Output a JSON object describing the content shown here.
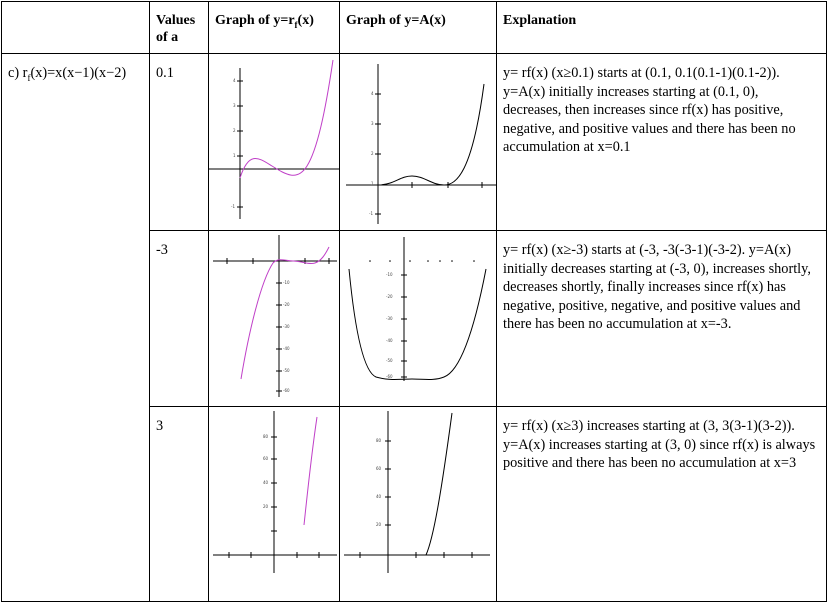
{
  "headers": {
    "blank": "",
    "values_of_a": "Values of a",
    "graph_r": "Graph of y=r",
    "graph_r_sub": "f",
    "graph_r_tail": "(x)",
    "graph_A": "Graph of y=A(x)",
    "explanation": "Explanation"
  },
  "function": {
    "prefix": "c) r",
    "sub": "f",
    "rest": "(x)=x(x−1)(x−2)"
  },
  "rows": [
    {
      "a": "0.1",
      "explanation": "y= rf(x) (x≥0.1) starts at (0.1, 0.1(0.1-1)(0.1-2)). y=A(x) initially increases starting at (0.1, 0), decreases, then increases  since rf(x) has positive, negative, and positive values and there has been no accumulation at x=0.1"
    },
    {
      "a": "-3",
      "explanation": "y= rf(x) (x≥-3) starts at (-3, -3(-3-1)(-3-2). y=A(x) initially decreases starting at (-3, 0), increases shortly, decreases shortly, finally increases since rf(x) has negative, positive, negative, and positive values and there has been no accumulation at x=-3."
    },
    {
      "a": "3",
      "explanation": "y= rf(x) (x≥3) increases starting at (3, 3(3-1)(3-2)). y=A(x) increases starting at (3, 0) since rf(x) is always positive and there has been no accumulation at x=3"
    }
  ],
  "colors": {
    "r_curve": "#c040c8",
    "A_curve": "#000000",
    "border": "#000000"
  },
  "chart_labels": {
    "g1_r_y": [
      "4",
      "3",
      "2",
      "1",
      "-1"
    ],
    "g1_A_y": [
      "4",
      "3",
      "2",
      "1",
      "-1"
    ],
    "g2_r_y": [
      "-10",
      "-20",
      "-30",
      "-40",
      "-50",
      "-60"
    ],
    "g2_A_y": [
      "-10",
      "-20",
      "-30",
      "-40",
      "-50",
      "-60"
    ],
    "g3_r_y": [
      "80",
      "60",
      "40",
      "20"
    ],
    "g3_A_y": [
      "80",
      "60",
      "40",
      "20"
    ]
  }
}
